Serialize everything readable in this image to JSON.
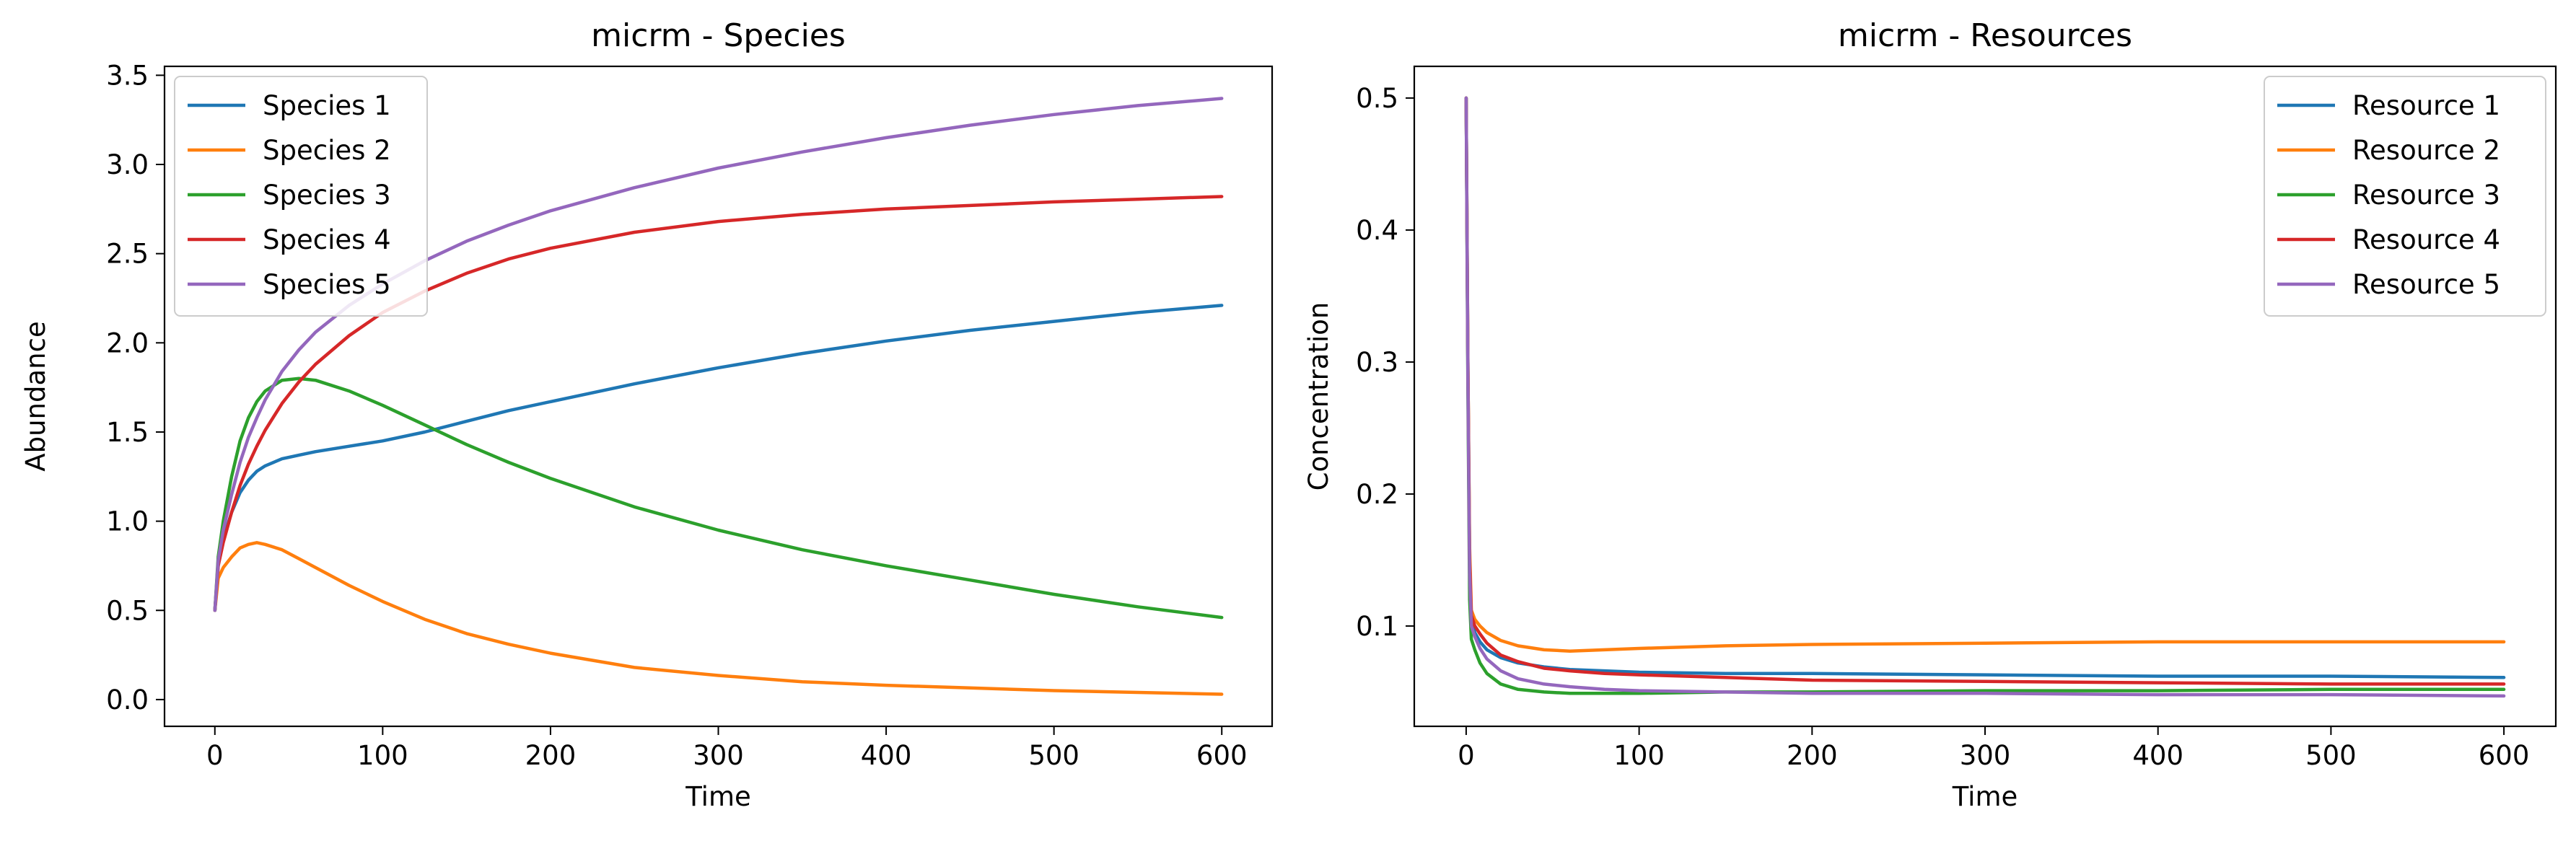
{
  "chart_data": [
    {
      "type": "line",
      "title": "micrm - Species",
      "xlabel": "Time",
      "ylabel": "Abundance",
      "xlim": [
        -30,
        630
      ],
      "ylim": [
        -0.15,
        3.55
      ],
      "xticks": [
        0,
        100,
        200,
        300,
        400,
        500,
        600
      ],
      "yticks": [
        0.0,
        0.5,
        1.0,
        1.5,
        2.0,
        2.5,
        3.0,
        3.5
      ],
      "ytick_labels": [
        "0.0",
        "0.5",
        "1.0",
        "1.5",
        "2.0",
        "2.5",
        "3.0",
        "3.5"
      ],
      "xtick_labels": [
        "0",
        "100",
        "200",
        "300",
        "400",
        "500",
        "600"
      ],
      "legend_position": "top-left",
      "grid": false,
      "x": [
        0,
        2,
        5,
        10,
        15,
        20,
        25,
        30,
        40,
        50,
        60,
        80,
        100,
        125,
        150,
        175,
        200,
        250,
        300,
        350,
        400,
        450,
        500,
        550,
        600
      ],
      "series": [
        {
          "name": "Species 1",
          "color": "#1f77b4",
          "values": [
            0.5,
            0.75,
            0.9,
            1.05,
            1.16,
            1.23,
            1.28,
            1.31,
            1.35,
            1.37,
            1.39,
            1.42,
            1.45,
            1.5,
            1.56,
            1.62,
            1.67,
            1.77,
            1.86,
            1.94,
            2.01,
            2.07,
            2.12,
            2.17,
            2.21
          ]
        },
        {
          "name": "Species 2",
          "color": "#ff7f0e",
          "values": [
            0.5,
            0.68,
            0.74,
            0.8,
            0.85,
            0.87,
            0.88,
            0.87,
            0.84,
            0.79,
            0.74,
            0.64,
            0.55,
            0.45,
            0.37,
            0.31,
            0.26,
            0.18,
            0.135,
            0.1,
            0.08,
            0.065,
            0.05,
            0.04,
            0.03
          ]
        },
        {
          "name": "Species 3",
          "color": "#2ca02c",
          "values": [
            0.5,
            0.8,
            1.0,
            1.25,
            1.45,
            1.58,
            1.67,
            1.73,
            1.79,
            1.8,
            1.79,
            1.73,
            1.65,
            1.54,
            1.43,
            1.33,
            1.24,
            1.08,
            0.95,
            0.84,
            0.75,
            0.67,
            0.59,
            0.52,
            0.46
          ]
        },
        {
          "name": "Species 4",
          "color": "#d62728",
          "values": [
            0.5,
            0.75,
            0.88,
            1.05,
            1.2,
            1.32,
            1.42,
            1.51,
            1.66,
            1.78,
            1.88,
            2.04,
            2.17,
            2.29,
            2.39,
            2.47,
            2.53,
            2.62,
            2.68,
            2.72,
            2.75,
            2.77,
            2.79,
            2.805,
            2.82
          ]
        },
        {
          "name": "Species 5",
          "color": "#9467bd",
          "values": [
            0.5,
            0.78,
            0.95,
            1.15,
            1.33,
            1.47,
            1.58,
            1.68,
            1.84,
            1.96,
            2.06,
            2.21,
            2.33,
            2.46,
            2.57,
            2.66,
            2.74,
            2.87,
            2.98,
            3.07,
            3.15,
            3.22,
            3.28,
            3.33,
            3.37
          ]
        }
      ]
    },
    {
      "type": "line",
      "title": "micrm - Resources",
      "xlabel": "Time",
      "ylabel": "Concentration",
      "xlim": [
        -30,
        630
      ],
      "ylim": [
        0.024,
        0.524
      ],
      "xticks": [
        0,
        100,
        200,
        300,
        400,
        500,
        600
      ],
      "yticks": [
        0.1,
        0.2,
        0.3,
        0.4,
        0.5
      ],
      "ytick_labels": [
        "0.1",
        "0.2",
        "0.3",
        "0.4",
        "0.5"
      ],
      "xtick_labels": [
        "0",
        "100",
        "200",
        "300",
        "400",
        "500",
        "600"
      ],
      "legend_position": "top-right",
      "grid": false,
      "x": [
        0,
        1,
        2,
        3,
        5,
        8,
        12,
        20,
        30,
        45,
        60,
        80,
        100,
        150,
        200,
        300,
        400,
        500,
        600
      ],
      "series": [
        {
          "name": "Resource 1",
          "color": "#1f77b4",
          "values": [
            0.5,
            0.3,
            0.15,
            0.105,
            0.095,
            0.088,
            0.082,
            0.076,
            0.072,
            0.069,
            0.067,
            0.066,
            0.065,
            0.064,
            0.064,
            0.063,
            0.062,
            0.062,
            0.061
          ]
        },
        {
          "name": "Resource 2",
          "color": "#ff7f0e",
          "values": [
            0.5,
            0.3,
            0.16,
            0.112,
            0.105,
            0.1,
            0.095,
            0.089,
            0.085,
            0.082,
            0.081,
            0.082,
            0.083,
            0.085,
            0.086,
            0.087,
            0.088,
            0.088,
            0.088
          ]
        },
        {
          "name": "Resource 3",
          "color": "#2ca02c",
          "values": [
            0.5,
            0.28,
            0.12,
            0.09,
            0.082,
            0.072,
            0.064,
            0.056,
            0.052,
            0.05,
            0.049,
            0.049,
            0.049,
            0.05,
            0.05,
            0.051,
            0.051,
            0.052,
            0.052
          ]
        },
        {
          "name": "Resource 4",
          "color": "#d62728",
          "values": [
            0.5,
            0.3,
            0.15,
            0.108,
            0.1,
            0.094,
            0.087,
            0.078,
            0.073,
            0.068,
            0.066,
            0.064,
            0.063,
            0.061,
            0.059,
            0.058,
            0.057,
            0.056,
            0.056
          ]
        },
        {
          "name": "Resource 5",
          "color": "#9467bd",
          "values": [
            0.5,
            0.29,
            0.14,
            0.1,
            0.092,
            0.083,
            0.075,
            0.066,
            0.06,
            0.056,
            0.054,
            0.052,
            0.051,
            0.05,
            0.049,
            0.049,
            0.048,
            0.048,
            0.047
          ]
        }
      ]
    }
  ]
}
